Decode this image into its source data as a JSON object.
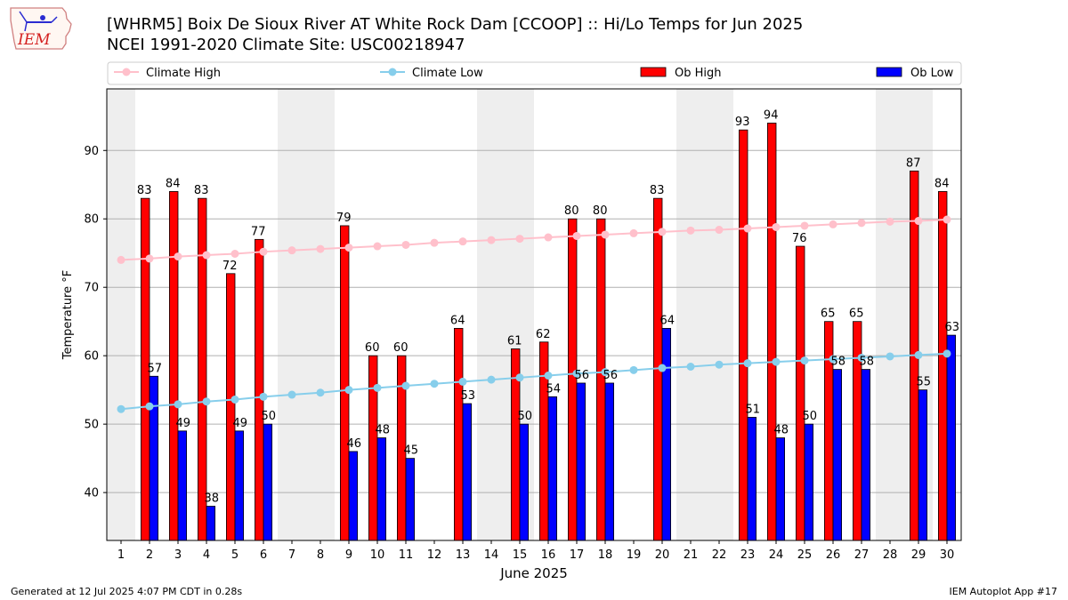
{
  "header": {
    "title_line1": "[WHRM5] Boix De Sioux River  AT White Rock Dam [CCOOP] :: Hi/Lo Temps for Jun 2025",
    "title_line2": "NCEI 1991-2020 Climate Site: USC00218947",
    "logo_text": "IEM"
  },
  "footer": {
    "generated": "Generated at 12 Jul 2025 4:07 PM CDT in 0.28s",
    "app": "IEM Autoplot App #17"
  },
  "colors": {
    "ob_high": "#ff0000",
    "ob_low": "#0000ff",
    "climate_high": "#ffc0cb",
    "climate_low": "#87ceeb",
    "weekend_shade": "#eeeeee",
    "grid": "#b0b0b0"
  },
  "chart_data": {
    "type": "bar",
    "xlabel": "June 2025",
    "ylabel": "Temperature °F",
    "ylim": [
      33,
      99
    ],
    "yticks": [
      40,
      50,
      60,
      70,
      80,
      90
    ],
    "xlim": [
      0.5,
      30.5
    ],
    "grid": "horizontal",
    "legend_position": "top",
    "legend": [
      "Climate High",
      "Climate Low",
      "Ob High",
      "Ob Low"
    ],
    "shaded_days": [
      1,
      7,
      8,
      14,
      15,
      21,
      22,
      28,
      29
    ],
    "days": [
      1,
      2,
      3,
      4,
      5,
      6,
      7,
      8,
      9,
      10,
      11,
      12,
      13,
      14,
      15,
      16,
      17,
      18,
      19,
      20,
      21,
      22,
      23,
      24,
      25,
      26,
      27,
      28,
      29,
      30
    ],
    "series": [
      {
        "name": "Ob High",
        "kind": "bar",
        "values": [
          null,
          83,
          84,
          83,
          72,
          77,
          null,
          null,
          79,
          60,
          60,
          null,
          64,
          null,
          61,
          62,
          80,
          80,
          null,
          83,
          null,
          null,
          93,
          94,
          76,
          65,
          65,
          null,
          87,
          84
        ]
      },
      {
        "name": "Ob Low",
        "kind": "bar",
        "values": [
          null,
          57,
          49,
          38,
          49,
          50,
          null,
          null,
          46,
          48,
          45,
          null,
          53,
          null,
          50,
          54,
          56,
          56,
          null,
          64,
          null,
          null,
          51,
          48,
          50,
          58,
          58,
          null,
          55,
          63
        ]
      },
      {
        "name": "Climate High",
        "kind": "line",
        "values": [
          74.0,
          74.2,
          74.5,
          74.7,
          74.9,
          75.2,
          75.4,
          75.6,
          75.8,
          76.0,
          76.2,
          76.5,
          76.7,
          76.9,
          77.1,
          77.3,
          77.5,
          77.7,
          77.9,
          78.1,
          78.3,
          78.4,
          78.6,
          78.8,
          79.0,
          79.2,
          79.4,
          79.6,
          79.7,
          79.9
        ]
      },
      {
        "name": "Climate Low",
        "kind": "line",
        "values": [
          52.2,
          52.6,
          52.9,
          53.3,
          53.6,
          54.0,
          54.3,
          54.6,
          55.0,
          55.3,
          55.6,
          55.9,
          56.2,
          56.5,
          56.8,
          57.1,
          57.4,
          57.6,
          57.9,
          58.2,
          58.4,
          58.7,
          58.9,
          59.1,
          59.3,
          59.5,
          59.7,
          59.9,
          60.1,
          60.3
        ]
      }
    ]
  }
}
